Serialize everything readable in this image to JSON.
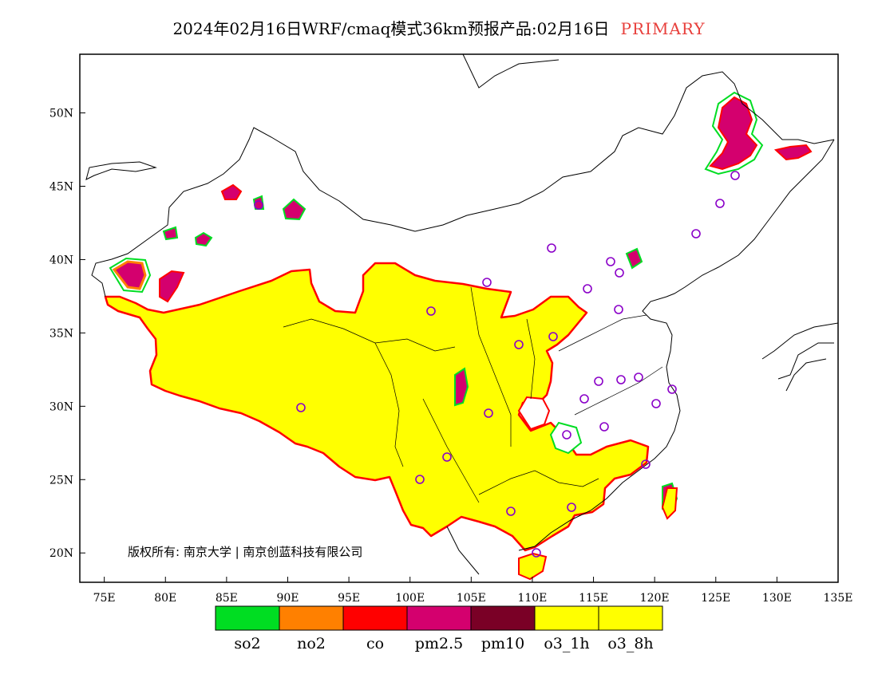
{
  "title": {
    "main": "2024年02月16日WRF/cmaq模式36km预报产品:02月16日",
    "primary": "PRIMARY"
  },
  "map": {
    "lon_range": [
      73,
      135
    ],
    "lat_range": [
      18,
      54
    ],
    "lat_labels": [
      "20N",
      "25N",
      "30N",
      "35N",
      "40N",
      "45N",
      "50N"
    ],
    "lon_labels": [
      "75E",
      "80E",
      "85E",
      "90E",
      "95E",
      "100E",
      "105E",
      "110E",
      "115E",
      "120E",
      "125E",
      "130E",
      "135E"
    ],
    "copyright": "版权所有: 南京大学 | 南京创蓝科技有限公司"
  },
  "legend": {
    "items": [
      {
        "label": "so2",
        "color": "#00dd22"
      },
      {
        "label": "no2",
        "color": "#ff8000"
      },
      {
        "label": "co",
        "color": "#ff0000"
      },
      {
        "label": "pm2.5",
        "color": "#d4006e"
      },
      {
        "label": "pm10",
        "color": "#7a0026"
      },
      {
        "label": "o3_1h",
        "color": "#ffff00"
      },
      {
        "label": "o3_8h",
        "color": "#ffff00"
      }
    ]
  }
}
